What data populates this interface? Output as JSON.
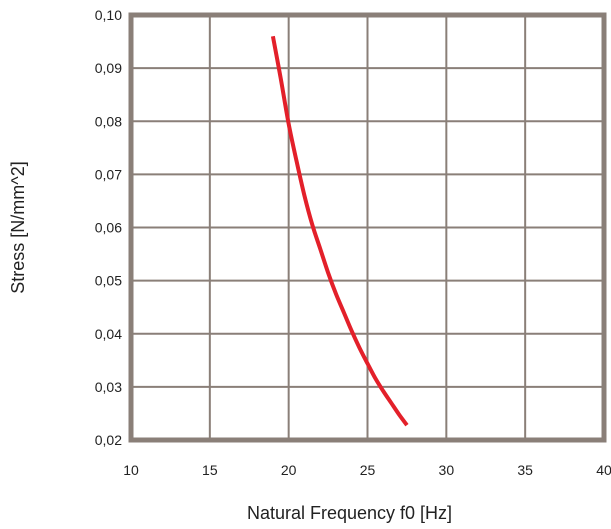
{
  "chart_data": {
    "type": "line",
    "title": "",
    "xlabel": "Natural Frequency f0 [Hz]",
    "ylabel": "Stress [N/mm^2]",
    "xlim": [
      10,
      40
    ],
    "ylim": [
      0.02,
      0.1
    ],
    "x_ticks": [
      10,
      15,
      20,
      25,
      30,
      35,
      40
    ],
    "x_tick_labels": [
      "10",
      "15",
      "20",
      "25",
      "30",
      "35",
      "40"
    ],
    "y_ticks": [
      0.02,
      0.03,
      0.04,
      0.05,
      0.06,
      0.07,
      0.08,
      0.09,
      0.1
    ],
    "y_tick_labels": [
      "0,02",
      "0,03",
      "0,04",
      "0,05",
      "0,06",
      "0,07",
      "0,08",
      "0,09",
      "0,10"
    ],
    "grid": true,
    "legend": "none",
    "series": [
      {
        "color": "#e3202a",
        "x": [
          19.0,
          19.5,
          20.0,
          20.5,
          21.0,
          21.5,
          22.0,
          22.5,
          23.0,
          23.5,
          24.0,
          24.5,
          25.0,
          25.5,
          26.0,
          26.5,
          27.0,
          27.5
        ],
        "y": [
          0.096,
          0.088,
          0.0795,
          0.0725,
          0.066,
          0.0605,
          0.056,
          0.0515,
          0.0475,
          0.044,
          0.0405,
          0.0373,
          0.0344,
          0.0316,
          0.0292,
          0.027,
          0.0248,
          0.0228
        ]
      }
    ]
  },
  "colors": {
    "frame": "#8a7f78",
    "grid": "#8a7f78",
    "line": "#e3202a"
  }
}
